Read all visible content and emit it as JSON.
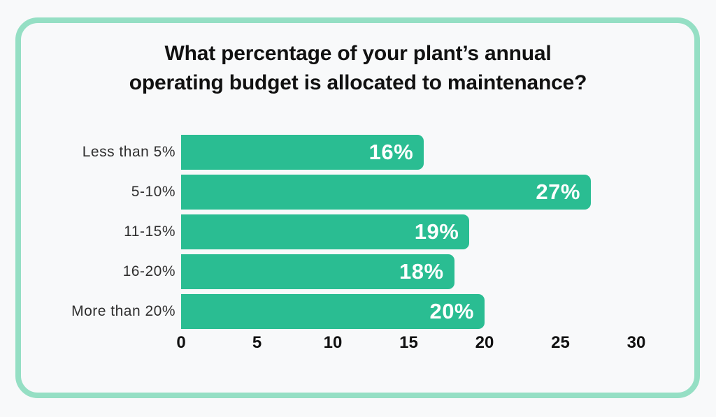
{
  "title": {
    "line1": "What percentage of your plant’s annual",
    "line2": "operating budget is allocated to maintenance?"
  },
  "chart_data": {
    "type": "bar",
    "orientation": "horizontal",
    "title": "What percentage of your plant’s annual operating budget is allocated to maintenance?",
    "categories": [
      "Less than 5%",
      "5-10%",
      "11-15%",
      "16-20%",
      "More than 20%"
    ],
    "values": [
      16,
      27,
      19,
      18,
      20
    ],
    "value_labels": [
      "16%",
      "27%",
      "19%",
      "18%",
      "20%"
    ],
    "xlabel": "",
    "ylabel": "",
    "xlim": [
      0,
      30
    ],
    "xticks": [
      0,
      5,
      10,
      15,
      20,
      25,
      30
    ],
    "grid": false,
    "legend": false
  },
  "colors": {
    "bar": "#2abd92",
    "bar_value_text": "#ffffff",
    "card_border": "#95dfc4",
    "background": "#f8f9fa",
    "title_text": "#111111",
    "category_label_text": "#2f2f2f",
    "tick_label_text": "#111111"
  }
}
